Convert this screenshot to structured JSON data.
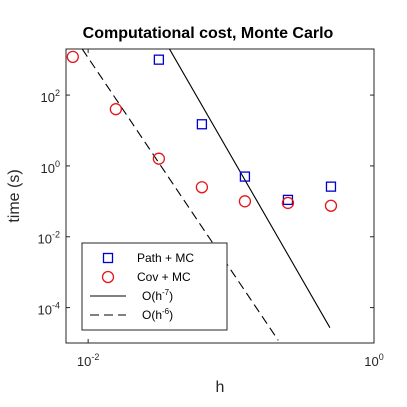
{
  "chart_data": {
    "type": "scatter",
    "title": "Computational cost, Monte Carlo",
    "xlabel": "h",
    "ylabel": "time (s)",
    "xscale": "log",
    "yscale": "log",
    "xlim": [
      0.007,
      1.0
    ],
    "ylim": [
      1e-05,
      2000
    ],
    "grid": false,
    "legend_position": "bottom-left",
    "x_ticks": [
      {
        "value": 0.01,
        "base": "10",
        "exp": "-2"
      },
      {
        "value": 1,
        "base": "10",
        "exp": "0"
      }
    ],
    "y_ticks": [
      {
        "value": 0.0001,
        "base": "10",
        "exp": "-4"
      },
      {
        "value": 0.01,
        "base": "10",
        "exp": "-2"
      },
      {
        "value": 1,
        "base": "10",
        "exp": "0"
      },
      {
        "value": 100,
        "base": "10",
        "exp": "2"
      }
    ],
    "series": [
      {
        "name": "Path + MC",
        "marker": "square",
        "color": "#0000cc",
        "points": [
          {
            "x": 0.03125,
            "y": 1000
          },
          {
            "x": 0.0625,
            "y": 15
          },
          {
            "x": 0.125,
            "y": 0.5
          },
          {
            "x": 0.25,
            "y": 0.11
          },
          {
            "x": 0.5,
            "y": 0.26
          }
        ]
      },
      {
        "name": "Cov + MC",
        "marker": "circle",
        "color": "#e8141b",
        "points": [
          {
            "x": 0.0078125,
            "y": 1200
          },
          {
            "x": 0.015625,
            "y": 40
          },
          {
            "x": 0.03125,
            "y": 1.6
          },
          {
            "x": 0.0625,
            "y": 0.25
          },
          {
            "x": 0.125,
            "y": 0.1
          },
          {
            "x": 0.25,
            "y": 0.09
          },
          {
            "x": 0.5,
            "y": 0.075
          }
        ]
      }
    ],
    "reference_lines": [
      {
        "label_base": "O(h",
        "label_exp": "-7",
        "label_end": ")",
        "style": "solid",
        "points": [
          {
            "x": 0.0371,
            "y": 1995
          },
          {
            "x": 0.4916,
            "y": 2.71e-05
          }
        ]
      },
      {
        "label_base": "O(h",
        "label_exp": "-6",
        "label_end": ")",
        "style": "dashed",
        "points": [
          {
            "x": 0.0091,
            "y": 1995
          },
          {
            "x": 0.2137,
            "y": 1.19e-05
          }
        ]
      }
    ]
  }
}
